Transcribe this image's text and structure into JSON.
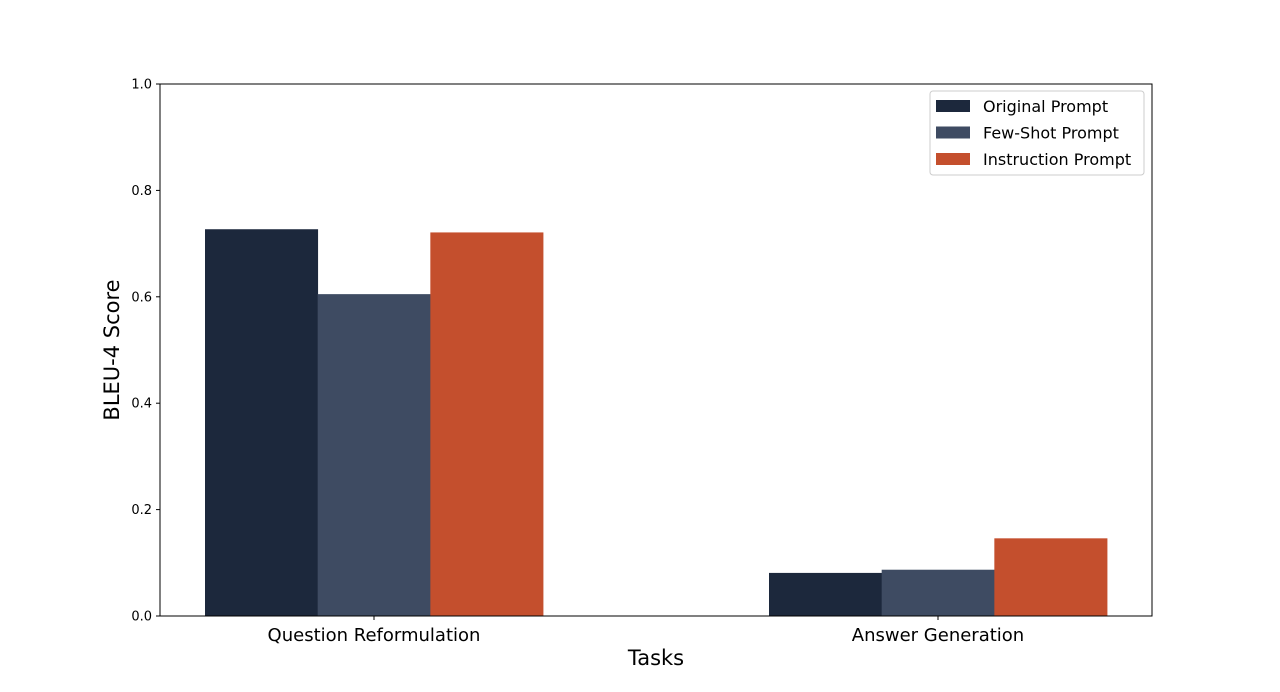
{
  "chart_data": {
    "type": "bar",
    "title": "",
    "xlabel": "Tasks",
    "ylabel": "BLEU-4 Score",
    "ylim": [
      0,
      1.0
    ],
    "yticks": [
      "0.0",
      "0.2",
      "0.4",
      "0.6",
      "0.8",
      "1.0"
    ],
    "categories": [
      "Question Reformulation",
      "Answer Generation"
    ],
    "series": [
      {
        "name": "Original Prompt",
        "color": "#1c283c",
        "values": [
          0.727,
          0.081
        ]
      },
      {
        "name": "Few-Shot Prompt",
        "color": "#3e4b62",
        "values": [
          0.605,
          0.087
        ]
      },
      {
        "name": "Instruction Prompt",
        "color": "#c44f2d",
        "values": [
          0.721,
          0.146
        ]
      }
    ],
    "legend_position": "top-right",
    "grid": false
  }
}
